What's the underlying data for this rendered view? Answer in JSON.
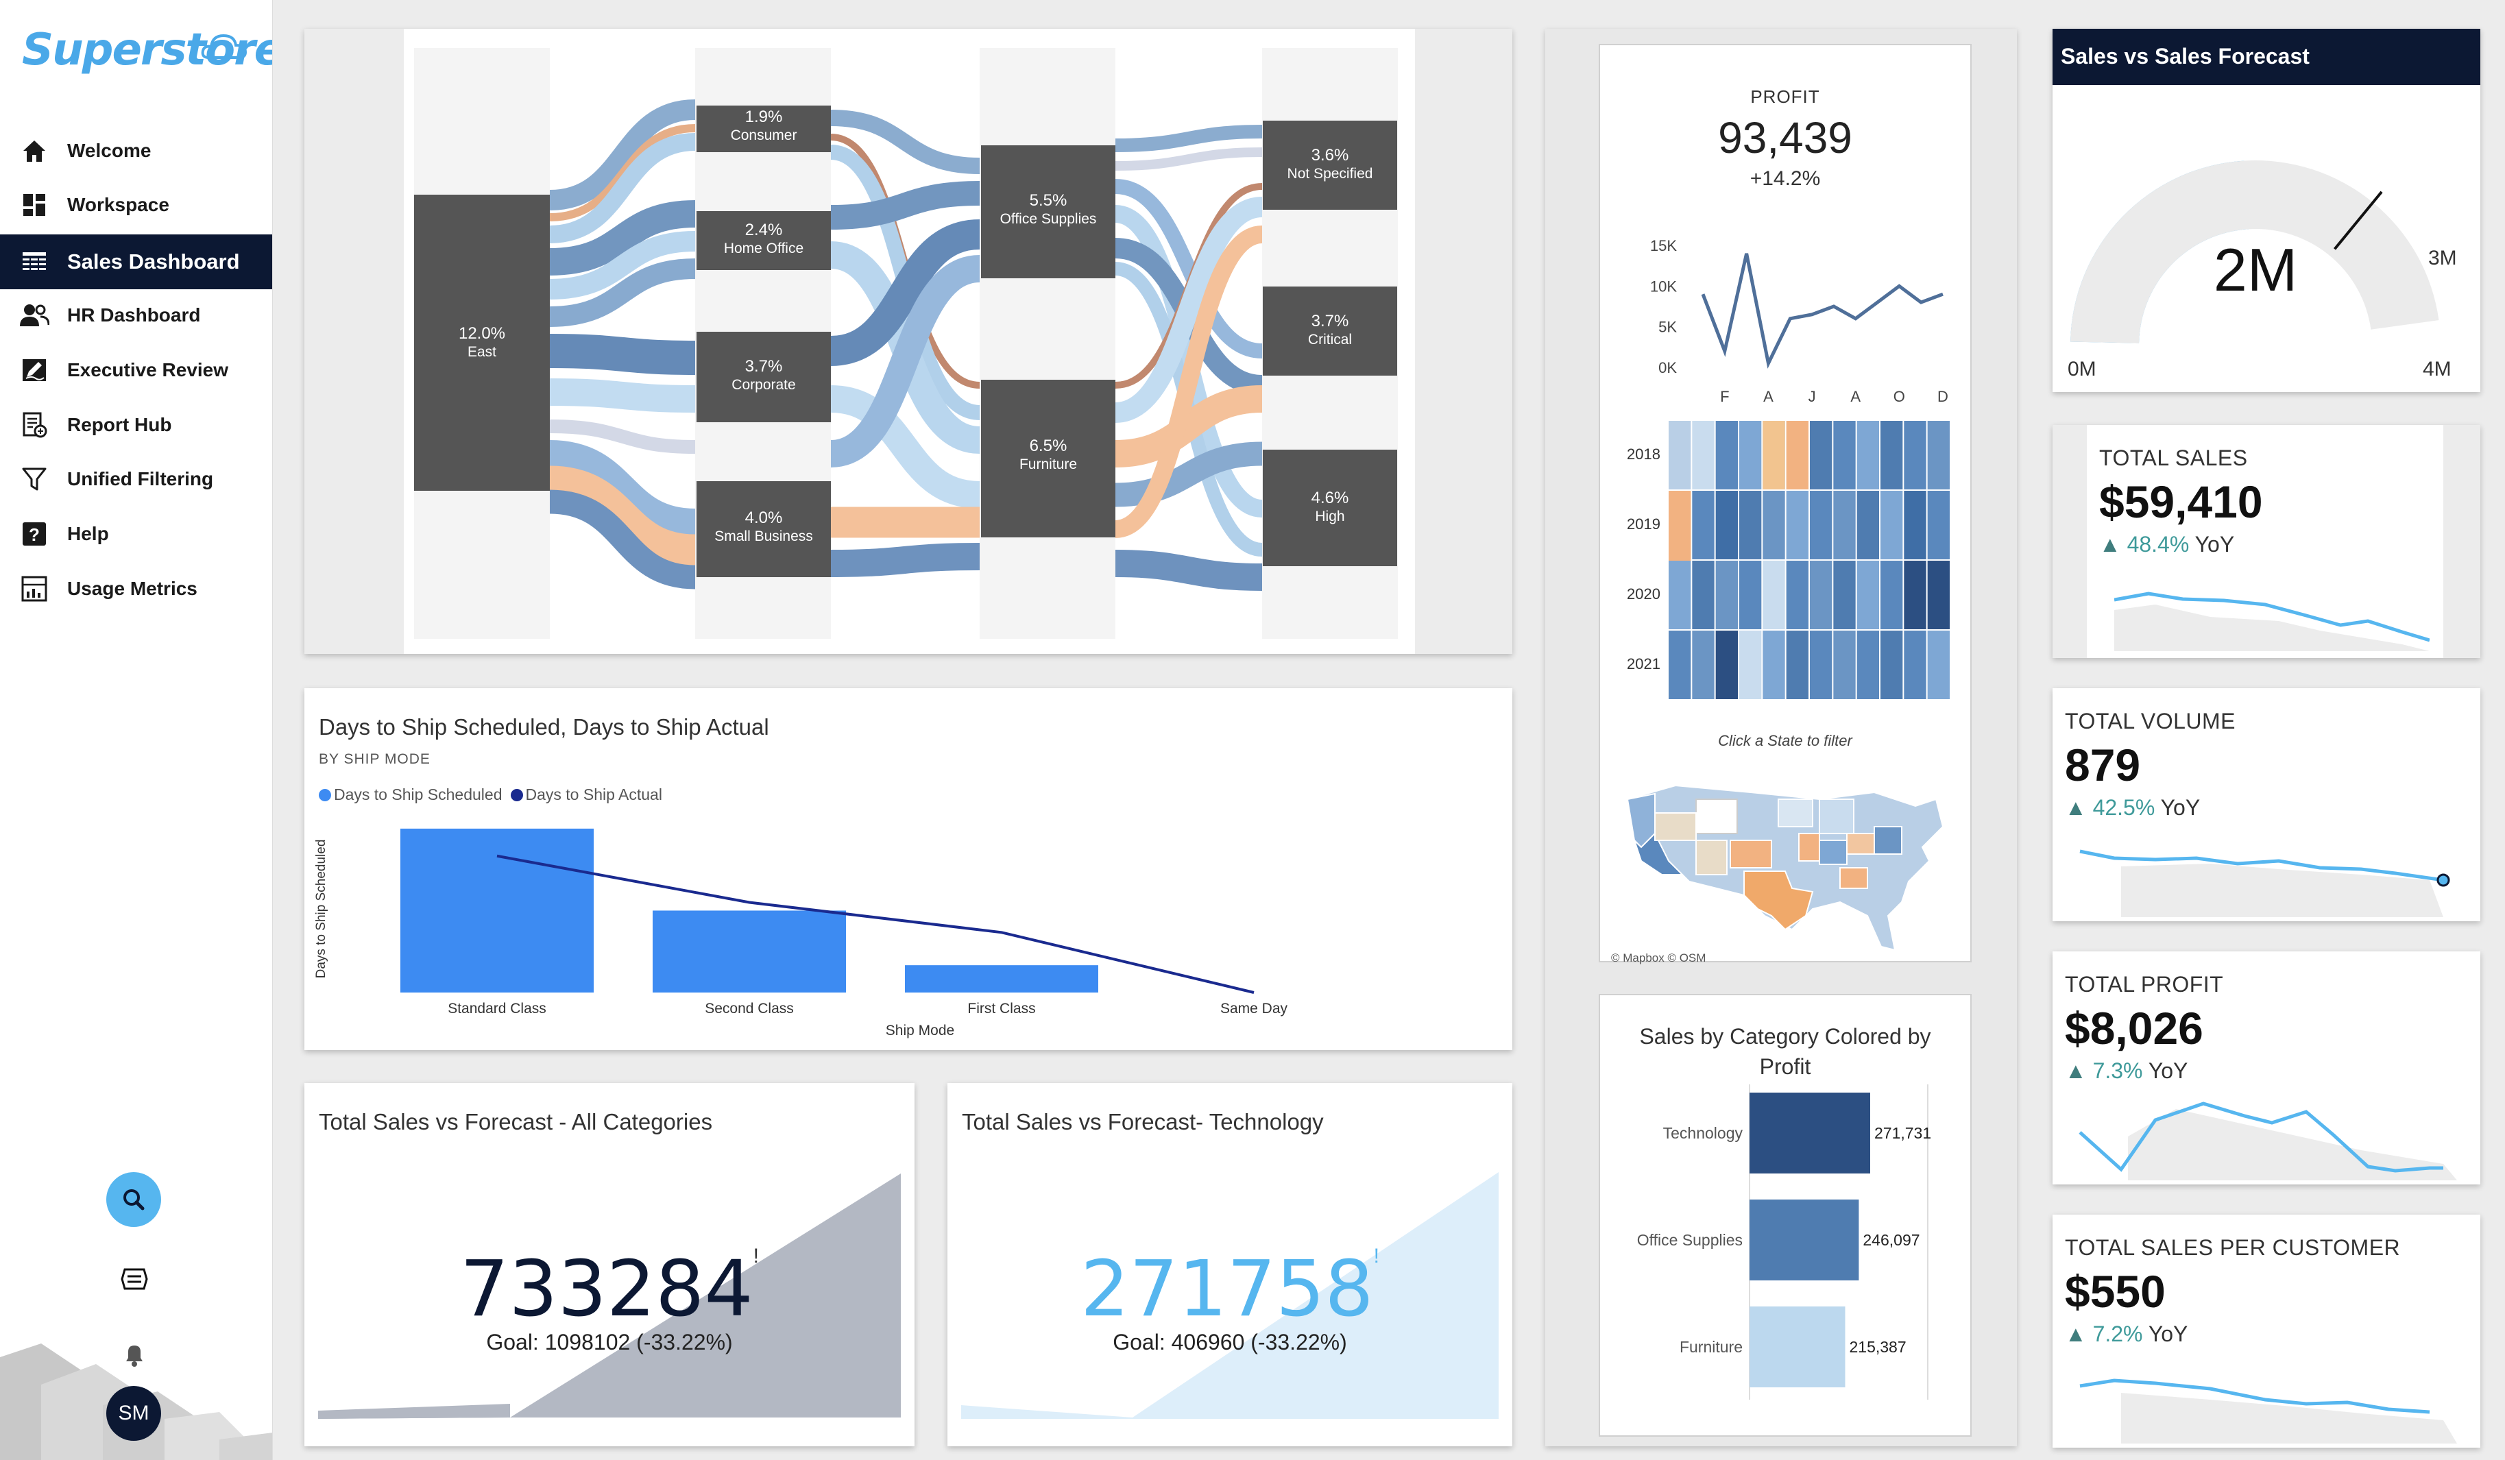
{
  "app": {
    "logo": "Superstore"
  },
  "sidebar": {
    "items": [
      {
        "label": "Welcome",
        "icon": "home-icon"
      },
      {
        "label": "Workspace",
        "icon": "grid-icon"
      },
      {
        "label": "Sales Dashboard",
        "icon": "table-icon",
        "active": true
      },
      {
        "label": "HR Dashboard",
        "icon": "people-icon"
      },
      {
        "label": "Executive Review",
        "icon": "pen-icon"
      },
      {
        "label": "Report Hub",
        "icon": "report-icon"
      },
      {
        "label": "Unified Filtering",
        "icon": "filter-icon"
      },
      {
        "label": "Help",
        "icon": "help-icon"
      },
      {
        "label": "Usage Metrics",
        "icon": "metrics-icon"
      }
    ],
    "avatar_initials": "SM"
  },
  "sankey": {
    "region": {
      "pct": "12.0%",
      "label": "East"
    },
    "segments": [
      {
        "pct": "1.9%",
        "label": "Consumer"
      },
      {
        "pct": "2.4%",
        "label": "Home Office"
      },
      {
        "pct": "3.7%",
        "label": "Corporate"
      },
      {
        "pct": "4.0%",
        "label": "Small Business"
      }
    ],
    "categories": [
      {
        "pct": "5.5%",
        "label": "Office Supplies"
      },
      {
        "pct": "6.5%",
        "label": "Furniture"
      }
    ],
    "priorities": [
      {
        "pct": "3.6%",
        "label": "Not Specified"
      },
      {
        "pct": "3.7%",
        "label": "Critical"
      },
      {
        "pct": "4.6%",
        "label": "High"
      }
    ]
  },
  "ship_chart": {
    "title": "Days to Ship Scheduled, Days to Ship Actual",
    "subtitle": "BY SHIP MODE",
    "legend": [
      "Days to Ship Scheduled",
      "Days to Ship Actual"
    ],
    "ylabel": "Days to Ship Scheduled",
    "xlabel": "Ship Mode",
    "colors": {
      "scheduled": "#3d8bf2",
      "actual": "#1a2a8f"
    }
  },
  "chart_data": [
    {
      "type": "bar",
      "title": "Days to Ship Scheduled, Days to Ship Actual",
      "categories": [
        "Standard Class",
        "Second Class",
        "First Class",
        "Same Day"
      ],
      "series": [
        {
          "name": "Days to Ship Scheduled",
          "values": [
            6,
            3,
            1,
            0
          ]
        },
        {
          "name": "Days to Ship Actual",
          "values": [
            5,
            3.3,
            2.2,
            0
          ]
        }
      ],
      "xlabel": "Ship Mode",
      "ylabel": "Days to Ship Scheduled",
      "ylim": [
        0,
        6
      ]
    },
    {
      "type": "line",
      "title": "PROFIT",
      "categories": [
        "J",
        "F",
        "M",
        "A",
        "M",
        "J",
        "J",
        "A",
        "S",
        "O",
        "N",
        "D"
      ],
      "values": [
        9000,
        2000,
        14000,
        500,
        6000,
        6500,
        7500,
        6000,
        8000,
        10000,
        8000,
        9000
      ],
      "yticks": [
        "15K",
        "10K",
        "5K",
        "0K"
      ],
      "xticks": [
        "F",
        "A",
        "J",
        "A",
        "O",
        "D"
      ],
      "ylim": [
        0,
        15000
      ]
    },
    {
      "type": "bar",
      "title": "Sales by Category Colored by Profit",
      "categories": [
        "Technology",
        "Office Supplies",
        "Furniture"
      ],
      "values": [
        271731,
        246097,
        215387
      ],
      "labels": [
        "271,731",
        "246,097",
        "215,387"
      ]
    }
  ],
  "profit": {
    "label": "PROFIT",
    "value": "93,439",
    "change": "+14.2%"
  },
  "heatmap": {
    "years": [
      "2018",
      "2019",
      "2020",
      "2021"
    ],
    "hint": "Click a State to filter"
  },
  "map": {
    "attribution": "© Mapbox  © OSM"
  },
  "category_chart": {
    "title_line1": "Sales by Category Colored by",
    "title_line2": "Profit"
  },
  "forecast_all": {
    "title": "Total Sales vs Forecast - All Categories",
    "value": "733284",
    "mark": "!",
    "goal": "Goal: 1098102 (-33.22%)"
  },
  "forecast_tech": {
    "title": "Total Sales vs Forecast- Technology",
    "value": "271758",
    "mark": "!",
    "goal": "Goal: 406960 (-33.22%)"
  },
  "gauge": {
    "title": "Sales vs Sales Forecast",
    "value": "2M",
    "min": "0M",
    "max": "4M",
    "target": "3M",
    "fraction": 0.5,
    "target_fraction": 0.75
  },
  "kpis": [
    {
      "label": "TOTAL SALES",
      "value": "$59,410",
      "arrow": "▲",
      "pct": "48.4%",
      "yoy": "YoY"
    },
    {
      "label": "TOTAL VOLUME",
      "value": "879",
      "arrow": "▲",
      "pct": "42.5%",
      "yoy": "YoY"
    },
    {
      "label": "TOTAL PROFIT",
      "value": "$8,026",
      "arrow": "▲",
      "pct": "7.3%",
      "yoy": "YoY"
    },
    {
      "label": "TOTAL SALES PER CUSTOMER",
      "value": "$550",
      "arrow": "▲",
      "pct": "7.2%",
      "yoy": "YoY"
    }
  ]
}
